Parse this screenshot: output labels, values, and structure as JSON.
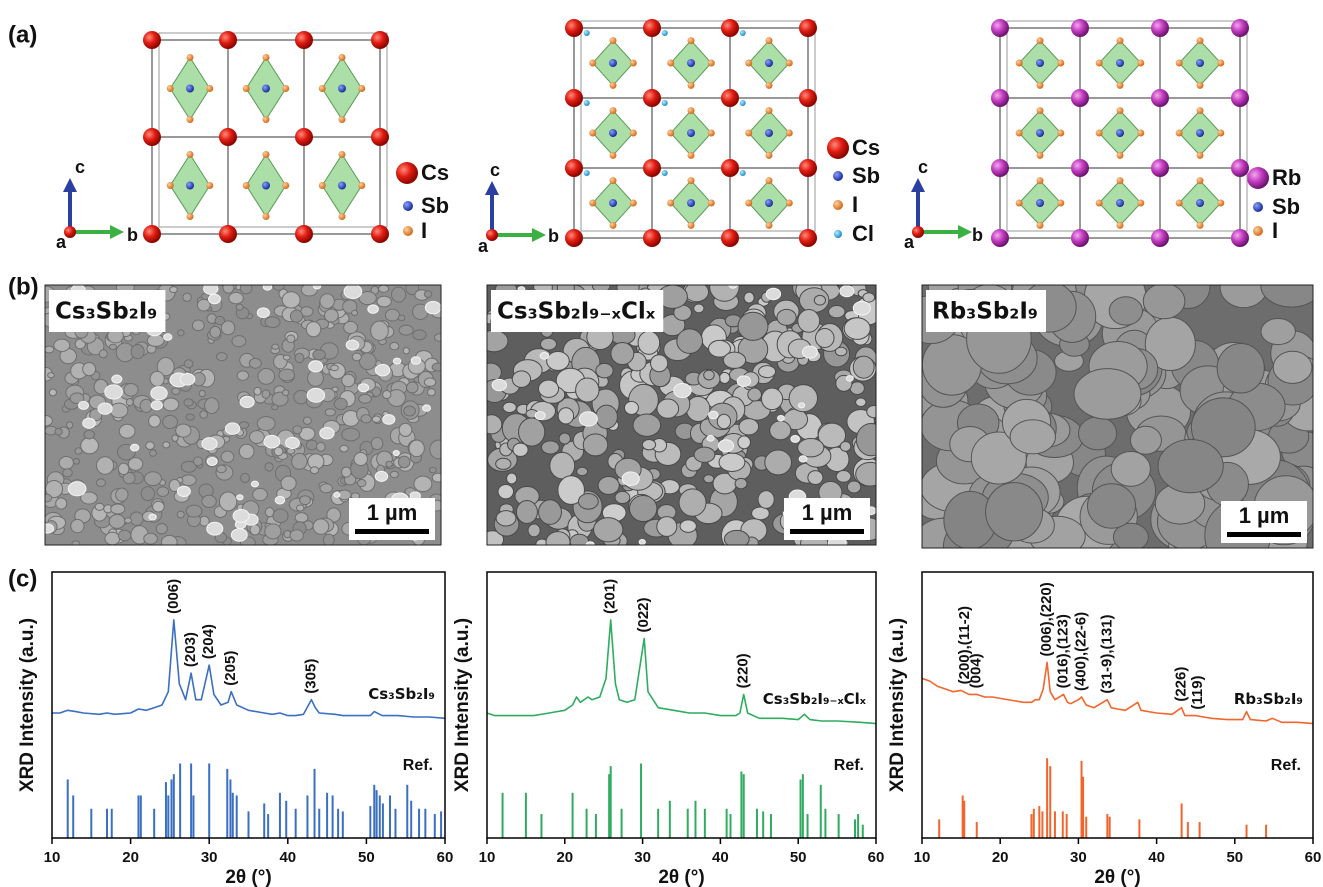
{
  "panel_labels": [
    "(a)",
    "(b)",
    "(c)"
  ],
  "structures": [
    {
      "axis_labels": [
        "c",
        "a",
        "b"
      ],
      "legend": [
        "Cs",
        "Sb",
        "I"
      ]
    },
    {
      "axis_labels": [
        "c",
        "a",
        "b"
      ],
      "legend": [
        "Cs",
        "Sb",
        "I",
        "Cl"
      ]
    },
    {
      "axis_labels": [
        "c",
        "a",
        "b"
      ],
      "legend": [
        "Rb",
        "Sb",
        "I"
      ]
    }
  ],
  "sem": [
    {
      "label": "Cs₃Sb₂I₉",
      "scale_bar": "1 µm"
    },
    {
      "label": "Cs₃Sb₂I₉₋ₓClₓ",
      "scale_bar": "1 µm"
    },
    {
      "label": "Rb₃Sb₂I₉",
      "scale_bar": "1 µm"
    }
  ],
  "chart_data": [
    {
      "type": "line",
      "xlabel": "2θ (°)",
      "ylabel": "XRD Intensity (a.u.)",
      "xlim": [
        10,
        60
      ],
      "xticks": [
        10,
        20,
        30,
        40,
        50,
        60
      ],
      "ylim": [
        0,
        100
      ],
      "x": [
        10,
        11,
        12,
        13,
        14,
        16,
        17,
        18,
        20,
        21,
        22,
        23,
        24,
        24.8,
        25.5,
        26.2,
        27,
        27.7,
        28.3,
        29,
        30,
        30.6,
        31.5,
        32.4,
        32.8,
        33.5,
        35,
        37,
        38,
        39,
        40,
        41,
        42,
        43,
        43.5,
        44,
        46,
        47,
        49,
        50.5,
        51,
        52,
        54,
        56,
        58,
        60
      ],
      "series": [
        {
          "name": "Cs₃Sb₂I₉",
          "color": "#3b6fc2",
          "values": [
            47,
            47,
            48,
            47.5,
            47,
            46.5,
            47,
            46.5,
            47,
            48.5,
            48,
            49,
            50,
            55,
            82,
            58,
            52,
            62,
            52,
            52,
            65,
            54,
            50,
            51,
            55,
            50,
            48,
            47,
            46.5,
            47,
            46,
            46,
            46.5,
            52,
            49,
            47,
            46.5,
            46,
            46,
            46,
            47.5,
            46,
            46,
            45.5,
            45.5,
            45
          ]
        }
      ],
      "reference": {
        "name": "Ref.",
        "x": [
          12,
          12.7,
          15,
          17,
          17.6,
          21,
          21.3,
          23,
          24.5,
          24.8,
          25.2,
          25.5,
          26.3,
          27.7,
          28,
          30,
          32.3,
          32.7,
          33,
          33.5,
          35,
          37,
          37.5,
          39,
          39.8,
          41,
          42.5,
          43.4,
          44,
          45,
          45.7,
          46.4,
          47,
          50.5,
          51,
          51.3,
          51.7,
          52.1,
          53,
          53.7,
          55.2,
          55.7,
          56.7,
          57.5,
          58.7,
          59.5
        ],
        "values": [
          22,
          16,
          11,
          11,
          11,
          16,
          16,
          11,
          21,
          16,
          22,
          24,
          28,
          28,
          16,
          28,
          26,
          22,
          17,
          16,
          10,
          13,
          9,
          17,
          14,
          11,
          16,
          26,
          11,
          17,
          16,
          11,
          10,
          12,
          20,
          18,
          16,
          13,
          16,
          11,
          20,
          14,
          11,
          11,
          9,
          10
        ]
      },
      "annotations": [
        {
          "text": "(006)",
          "x": 25.5
        },
        {
          "text": "(203)",
          "x": 27.7
        },
        {
          "text": "(204)",
          "x": 30
        },
        {
          "text": "(205)",
          "x": 32.8
        },
        {
          "text": "(305)",
          "x": 43
        }
      ]
    },
    {
      "type": "line",
      "xlabel": "2θ (°)",
      "ylabel": "XRD Intensity (a.u.)",
      "xlim": [
        10,
        60
      ],
      "xticks": [
        10,
        20,
        30,
        40,
        50,
        60
      ],
      "ylim": [
        0,
        100
      ],
      "x": [
        10,
        11,
        12,
        14,
        16,
        18,
        19,
        20,
        21,
        21.5,
        22,
        23,
        23.5,
        24.5,
        25.3,
        25.9,
        26.5,
        27,
        28,
        29,
        30.2,
        30.7,
        32,
        34,
        36,
        38,
        40,
        42,
        42.5,
        43,
        43.5,
        45,
        48,
        50,
        50.8,
        51.5,
        53,
        55,
        58,
        60
      ],
      "series": [
        {
          "name": "Cs₃Sb₂I₉₋ₓClₓ",
          "color": "#2fac5f",
          "values": [
            47,
            46,
            46,
            46,
            46,
            47,
            47.5,
            48,
            50,
            53,
            51,
            53,
            52,
            53,
            60,
            82,
            58,
            52,
            51,
            52,
            75,
            55,
            49,
            48,
            47,
            47,
            46,
            46,
            47,
            54,
            47,
            45,
            45,
            44.5,
            46.5,
            44.5,
            44,
            44,
            43.5,
            43
          ]
        }
      ],
      "reference": {
        "name": "Ref.",
        "x": [
          12,
          15,
          17,
          21,
          22.8,
          24,
          25.7,
          25.9,
          27.3,
          29.8,
          32,
          33.5,
          35.8,
          36.8,
          38,
          40.8,
          41.3,
          42.7,
          43,
          44.7,
          45.5,
          46.5,
          50.3,
          50.6,
          51.2,
          52.9,
          53.5,
          55.2,
          57.3,
          57.7,
          58.3
        ],
        "values": [
          17,
          17,
          9,
          17,
          11,
          9,
          24,
          27,
          11,
          28,
          11,
          14,
          11,
          14,
          11,
          11,
          9,
          25,
          24,
          11,
          10,
          9,
          22,
          24,
          9,
          20,
          11,
          9,
          7,
          9,
          5
        ]
      },
      "annotations": [
        {
          "text": "(201)",
          "x": 25.9
        },
        {
          "text": "(022)",
          "x": 30.2
        },
        {
          "text": "(220)",
          "x": 43
        }
      ]
    },
    {
      "type": "line",
      "xlabel": "2θ (°)",
      "ylabel": "XRD Intensity (a.u.)",
      "xlim": [
        10,
        60
      ],
      "xticks": [
        10,
        20,
        30,
        40,
        50,
        60
      ],
      "ylim": [
        0,
        100
      ],
      "x": [
        10,
        11,
        12,
        13,
        14,
        15,
        16,
        17,
        18,
        19,
        20,
        22,
        23,
        24,
        24.5,
        25,
        25.5,
        26,
        26.4,
        27,
        28.1,
        28.6,
        29,
        30,
        30.4,
        31,
        32,
        33.7,
        34.2,
        35,
        36,
        37.6,
        38,
        40,
        42,
        43.2,
        43.6,
        45,
        46,
        47,
        49,
        51,
        51.5,
        52,
        54,
        54.8,
        56,
        58,
        60
      ],
      "series": [
        {
          "name": "Rb₃Sb₂I₉",
          "color": "#f2652c",
          "values": [
            60,
            59,
            57,
            56,
            55,
            55.5,
            54,
            54,
            53,
            53,
            52.5,
            51.5,
            51,
            51,
            52,
            52,
            56,
            66,
            55,
            52,
            54,
            51,
            50.5,
            52,
            53,
            50,
            49,
            52,
            49,
            48.5,
            48,
            51,
            48,
            47,
            46.5,
            49,
            46,
            46,
            45.5,
            45,
            44.5,
            44.5,
            47.5,
            44.5,
            44,
            45,
            43.5,
            43.5,
            43
          ]
        }
      ],
      "reference": {
        "name": "Ref.",
        "x": [
          12.2,
          15.2,
          15.4,
          17,
          24,
          24.3,
          25,
          25.4,
          26,
          26.4,
          27,
          28,
          28.5,
          30.4,
          30.6,
          31,
          33.7,
          34,
          37.8,
          43.2,
          44,
          45.5,
          51.5,
          54
        ],
        "values": [
          7,
          16,
          14,
          6,
          9,
          11,
          12,
          10,
          30,
          27,
          10,
          10,
          9,
          29,
          23,
          8,
          9,
          8,
          7,
          13,
          6,
          6,
          5,
          5
        ]
      },
      "annotations": [
        {
          "text": "(200),(11-2)",
          "x": 15.5
        },
        {
          "text": "(004)",
          "x": 17
        },
        {
          "text": "(006),(220)",
          "x": 26
        },
        {
          "text": "(016),(123)",
          "x": 28.1
        },
        {
          "text": "(400),(22-6)",
          "x": 30.4
        },
        {
          "text": "(31-9),(131)",
          "x": 33.7
        },
        {
          "text": "(226)",
          "x": 43.2
        },
        {
          "text": "(119)",
          "x": 45.3
        }
      ]
    }
  ]
}
